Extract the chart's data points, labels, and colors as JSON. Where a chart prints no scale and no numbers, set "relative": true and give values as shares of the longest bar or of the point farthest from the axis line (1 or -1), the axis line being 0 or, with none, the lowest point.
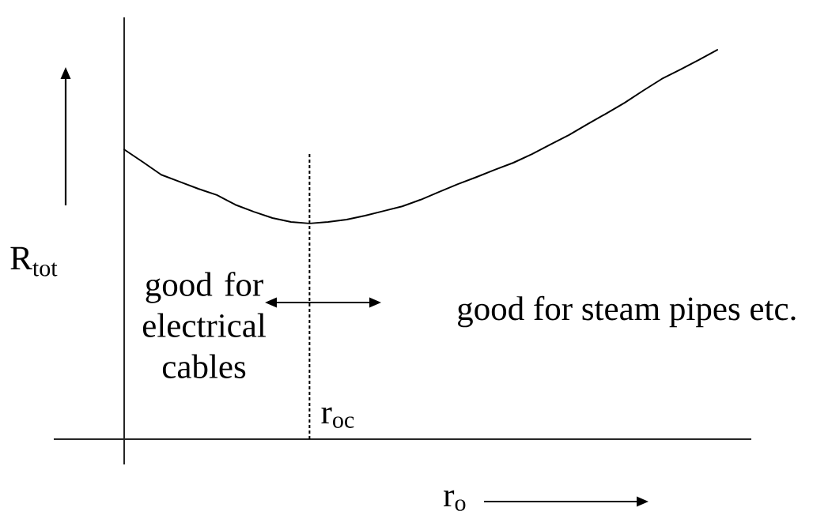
{
  "chart_data": {
    "type": "line",
    "xlabel": "r$_{o}$",
    "ylabel": "R$_{tot}$",
    "categories": [
      null,
      null,
      null,
      null,
      null,
      null,
      null,
      null,
      null,
      null,
      null,
      null,
      null,
      null,
      null,
      null,
      null,
      null,
      null,
      null,
      null,
      null,
      null,
      null,
      null,
      null,
      null,
      null,
      null,
      null,
      null,
      null,
      null
    ],
    "relative": true,
    "series": [
      {
        "color": "#000000",
        "values": [
          0.744,
          0.712,
          0.679,
          0.661,
          0.643,
          0.627,
          0.602,
          0.584,
          0.568,
          0.558,
          0.554,
          0.558,
          0.564,
          0.574,
          0.586,
          0.598,
          0.615,
          0.635,
          0.655,
          0.673,
          0.692,
          0.71,
          0.732,
          0.757,
          0.781,
          0.809,
          0.836,
          0.864,
          0.895,
          0.925,
          0.949,
          0.974,
          1.0
        ]
      }
    ],
    "annotations": [
      "good for electrical cables",
      "good for steam pipes etc.",
      "r$_{oc}$"
    ]
  }
}
